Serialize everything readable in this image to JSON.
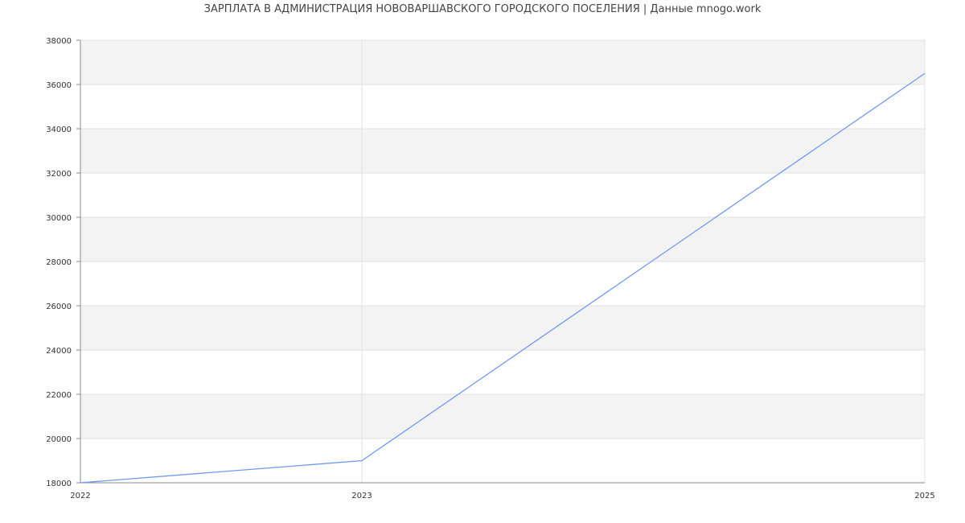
{
  "chart_data": {
    "type": "line",
    "title": "ЗАРПЛАТА В АДМИНИСТРАЦИЯ НОВОВАРШАВСКОГО ГОРОДСКОГО ПОСЕЛЕНИЯ | Данные mnogo.work",
    "xlabel": "",
    "ylabel": "",
    "x": [
      2022,
      2023,
      2025
    ],
    "series": [
      {
        "values": [
          18000,
          19000,
          36500
        ],
        "color": "#6f9af0"
      }
    ],
    "xlim": [
      2022,
      2025
    ],
    "ylim": [
      18000,
      38000
    ],
    "x_ticks": [
      "2022",
      "2023",
      "2025"
    ],
    "y_ticks": [
      "18000",
      "20000",
      "22000",
      "24000",
      "26000",
      "28000",
      "30000",
      "32000",
      "34000",
      "36000",
      "38000"
    ],
    "grid": true,
    "band_color": "#f3f3f3",
    "legend": "none"
  }
}
